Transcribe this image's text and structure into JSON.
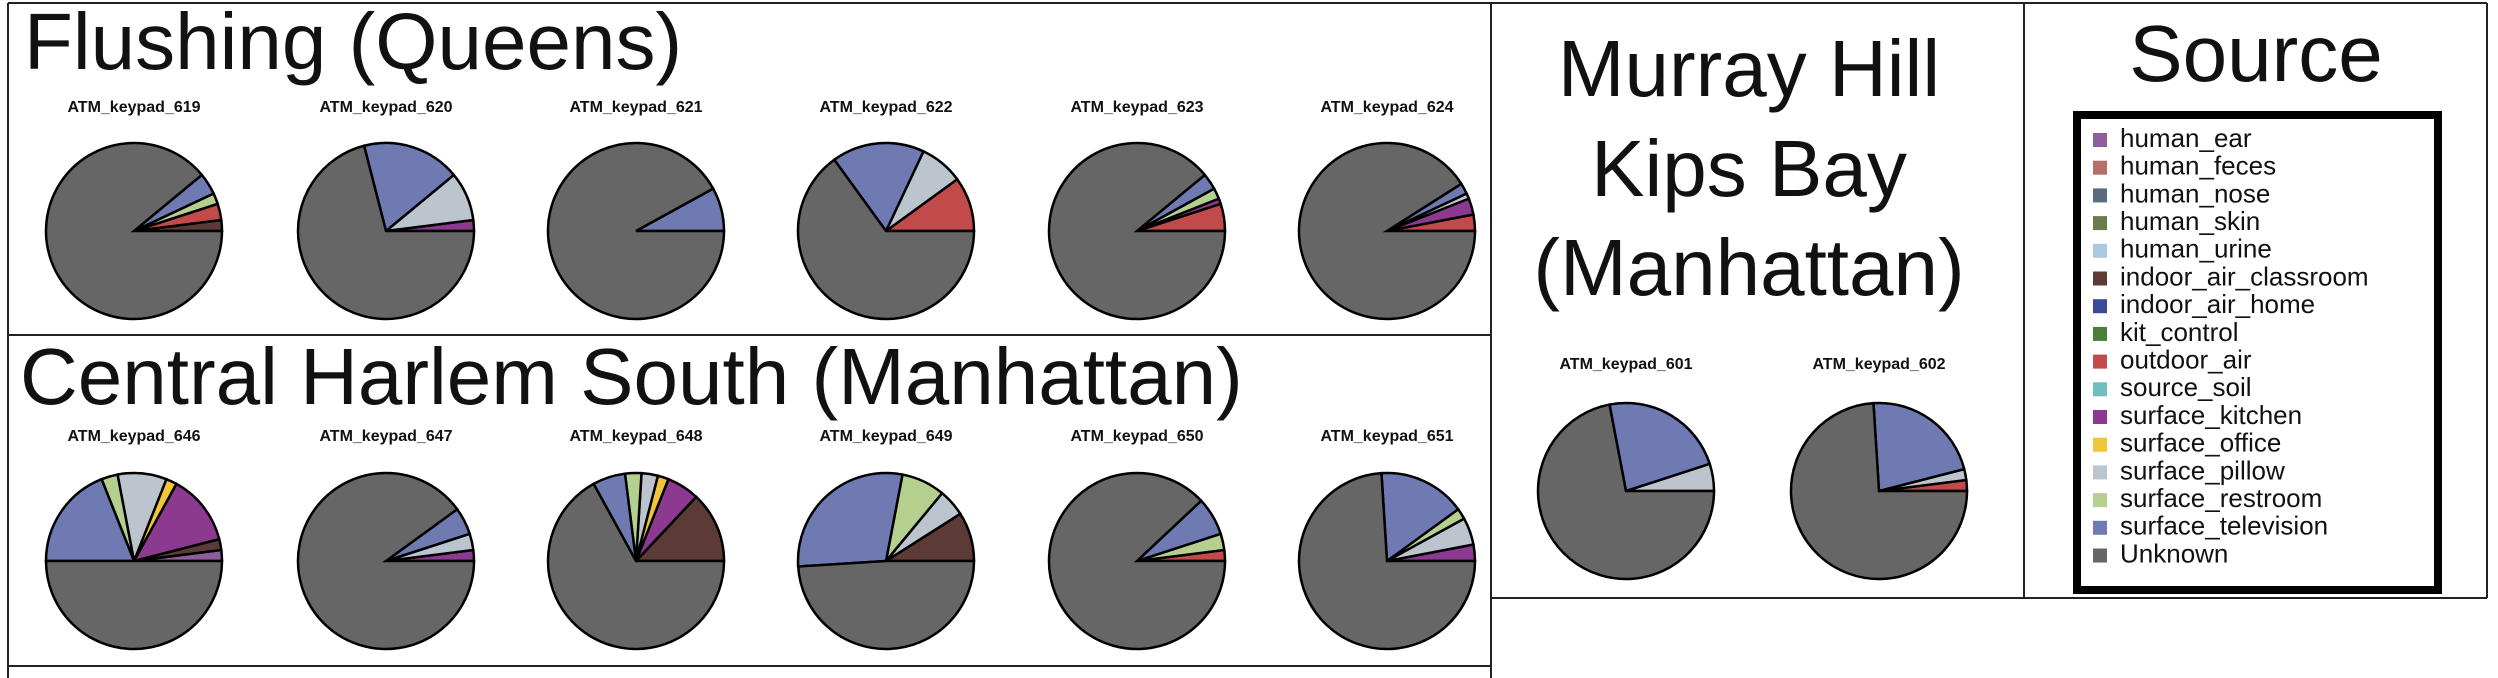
{
  "panels": [
    {
      "title": "Flushing (Queens)"
    },
    {
      "title": "Central Harlem South (Manhattan)"
    },
    {
      "title": [
        "Murray Hill",
        "Kips Bay",
        "(Manhattan)"
      ]
    }
  ],
  "legend": {
    "title": "Source",
    "categories": [
      "human_ear",
      "human_feces",
      "human_nose",
      "human_skin",
      "human_urine",
      "indoor_air_classroom",
      "indoor_air_home",
      "kit_control",
      "outdoor_air",
      "source_soil",
      "surface_kitchen",
      "surface_office",
      "surface_pillow",
      "surface_restroom",
      "surface_television",
      "Unknown"
    ],
    "colors": [
      "#8e5d9b",
      "#b5706b",
      "#5b6b7f",
      "#6b7b4b",
      "#a9c9e3",
      "#5c3a35",
      "#3b4a9a",
      "#4a7f3a",
      "#c24a4a",
      "#6fbfbf",
      "#8b3a8f",
      "#f0c53a",
      "#bcc4ce",
      "#b5cf8e",
      "#6f7ab3",
      "#666666"
    ]
  },
  "chart_data": [
    {
      "type": "pie",
      "title": "ATM_keypad_619",
      "values": [
        0,
        0,
        0,
        0,
        0,
        2,
        0,
        0,
        3,
        0,
        0,
        0,
        0,
        2,
        4,
        89
      ]
    },
    {
      "type": "pie",
      "title": "ATM_keypad_620",
      "values": [
        0,
        0,
        0,
        0,
        0,
        0,
        0,
        0,
        0,
        0,
        2,
        0,
        9,
        0,
        18,
        71
      ]
    },
    {
      "type": "pie",
      "title": "ATM_keypad_621",
      "values": [
        0,
        0,
        0,
        0,
        0,
        0,
        0,
        0,
        0,
        0,
        0,
        0,
        0,
        0,
        8,
        92
      ]
    },
    {
      "type": "pie",
      "title": "ATM_keypad_622",
      "values": [
        0,
        0,
        0,
        0,
        0,
        0,
        0,
        0,
        10,
        0,
        0,
        0,
        8,
        0,
        17,
        65
      ]
    },
    {
      "type": "pie",
      "title": "ATM_keypad_623",
      "values": [
        0,
        0,
        0,
        0,
        0,
        0,
        0,
        0,
        5,
        0,
        1,
        0,
        0,
        2,
        3,
        89
      ]
    },
    {
      "type": "pie",
      "title": "ATM_keypad_624",
      "values": [
        0,
        0,
        0,
        0,
        0,
        0,
        0,
        0,
        3,
        0,
        3,
        0,
        1,
        0,
        2,
        91
      ]
    },
    {
      "type": "pie",
      "title": "ATM_keypad_646",
      "values": [
        2,
        0,
        0,
        0,
        0,
        2,
        0,
        0,
        0,
        0,
        13,
        2,
        9,
        3,
        19,
        50
      ]
    },
    {
      "type": "pie",
      "title": "ATM_keypad_647",
      "values": [
        0,
        0,
        0,
        0,
        0,
        0,
        0,
        0,
        0,
        0,
        2,
        0,
        3,
        0,
        5,
        90
      ]
    },
    {
      "type": "pie",
      "title": "ATM_keypad_648",
      "values": [
        0,
        0,
        0,
        0,
        0,
        13,
        0,
        0,
        0,
        0,
        6,
        2,
        3,
        3,
        6,
        67
      ]
    },
    {
      "type": "pie",
      "title": "ATM_keypad_649",
      "values": [
        0,
        0,
        0,
        0,
        0,
        9,
        0,
        0,
        0,
        0,
        0,
        0,
        5,
        8,
        29,
        49
      ]
    },
    {
      "type": "pie",
      "title": "ATM_keypad_650",
      "values": [
        0,
        0,
        0,
        0,
        0,
        0,
        0,
        0,
        2,
        0,
        0,
        0,
        0,
        3,
        7,
        88
      ]
    },
    {
      "type": "pie",
      "title": "ATM_keypad_651",
      "values": [
        0,
        0,
        0,
        0,
        0,
        0,
        0,
        0,
        0,
        0,
        3,
        0,
        5,
        2,
        16,
        74
      ]
    },
    {
      "type": "pie",
      "title": "ATM_keypad_601",
      "values": [
        0,
        0,
        0,
        0,
        0,
        0,
        0,
        0,
        0,
        0,
        0,
        0,
        5,
        0,
        23,
        72
      ]
    },
    {
      "type": "pie",
      "title": "ATM_keypad_602",
      "values": [
        0,
        0,
        0,
        0,
        0,
        0,
        0,
        0,
        2,
        0,
        0,
        0,
        2,
        0,
        22,
        74
      ]
    }
  ]
}
